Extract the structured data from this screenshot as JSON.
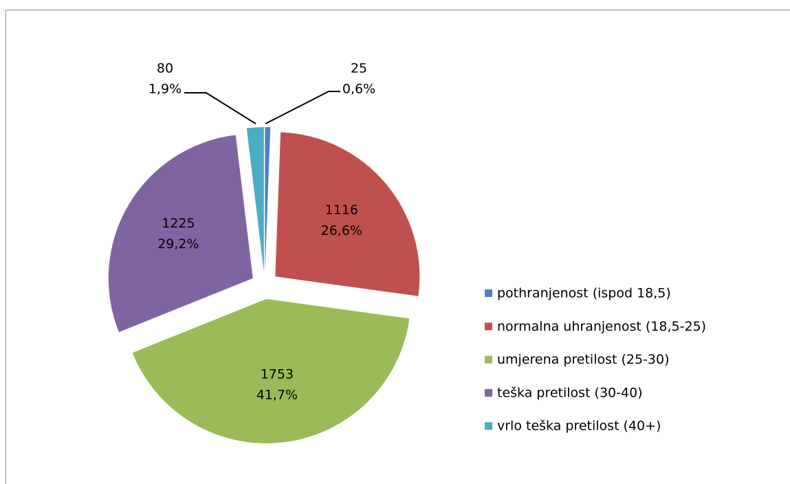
{
  "chart_data": {
    "type": "pie",
    "categories": [
      "pothranjenost (ispod 18,5)",
      "normalna uhranjenost (18,5-25)",
      "umjerena pretilost (25-30)",
      "teška pretilost (30-40)",
      "vrlo teška pretilost (40+)"
    ],
    "values": [
      25,
      1116,
      1753,
      1225,
      80
    ],
    "percent_labels": [
      "0,6%",
      "26,6%",
      "41,7%",
      "29,2%",
      "1,9%"
    ],
    "colors": [
      "#4f81bd",
      "#c0504d",
      "#9bbb59",
      "#8064a2",
      "#4bacc6"
    ],
    "legend": "right"
  }
}
